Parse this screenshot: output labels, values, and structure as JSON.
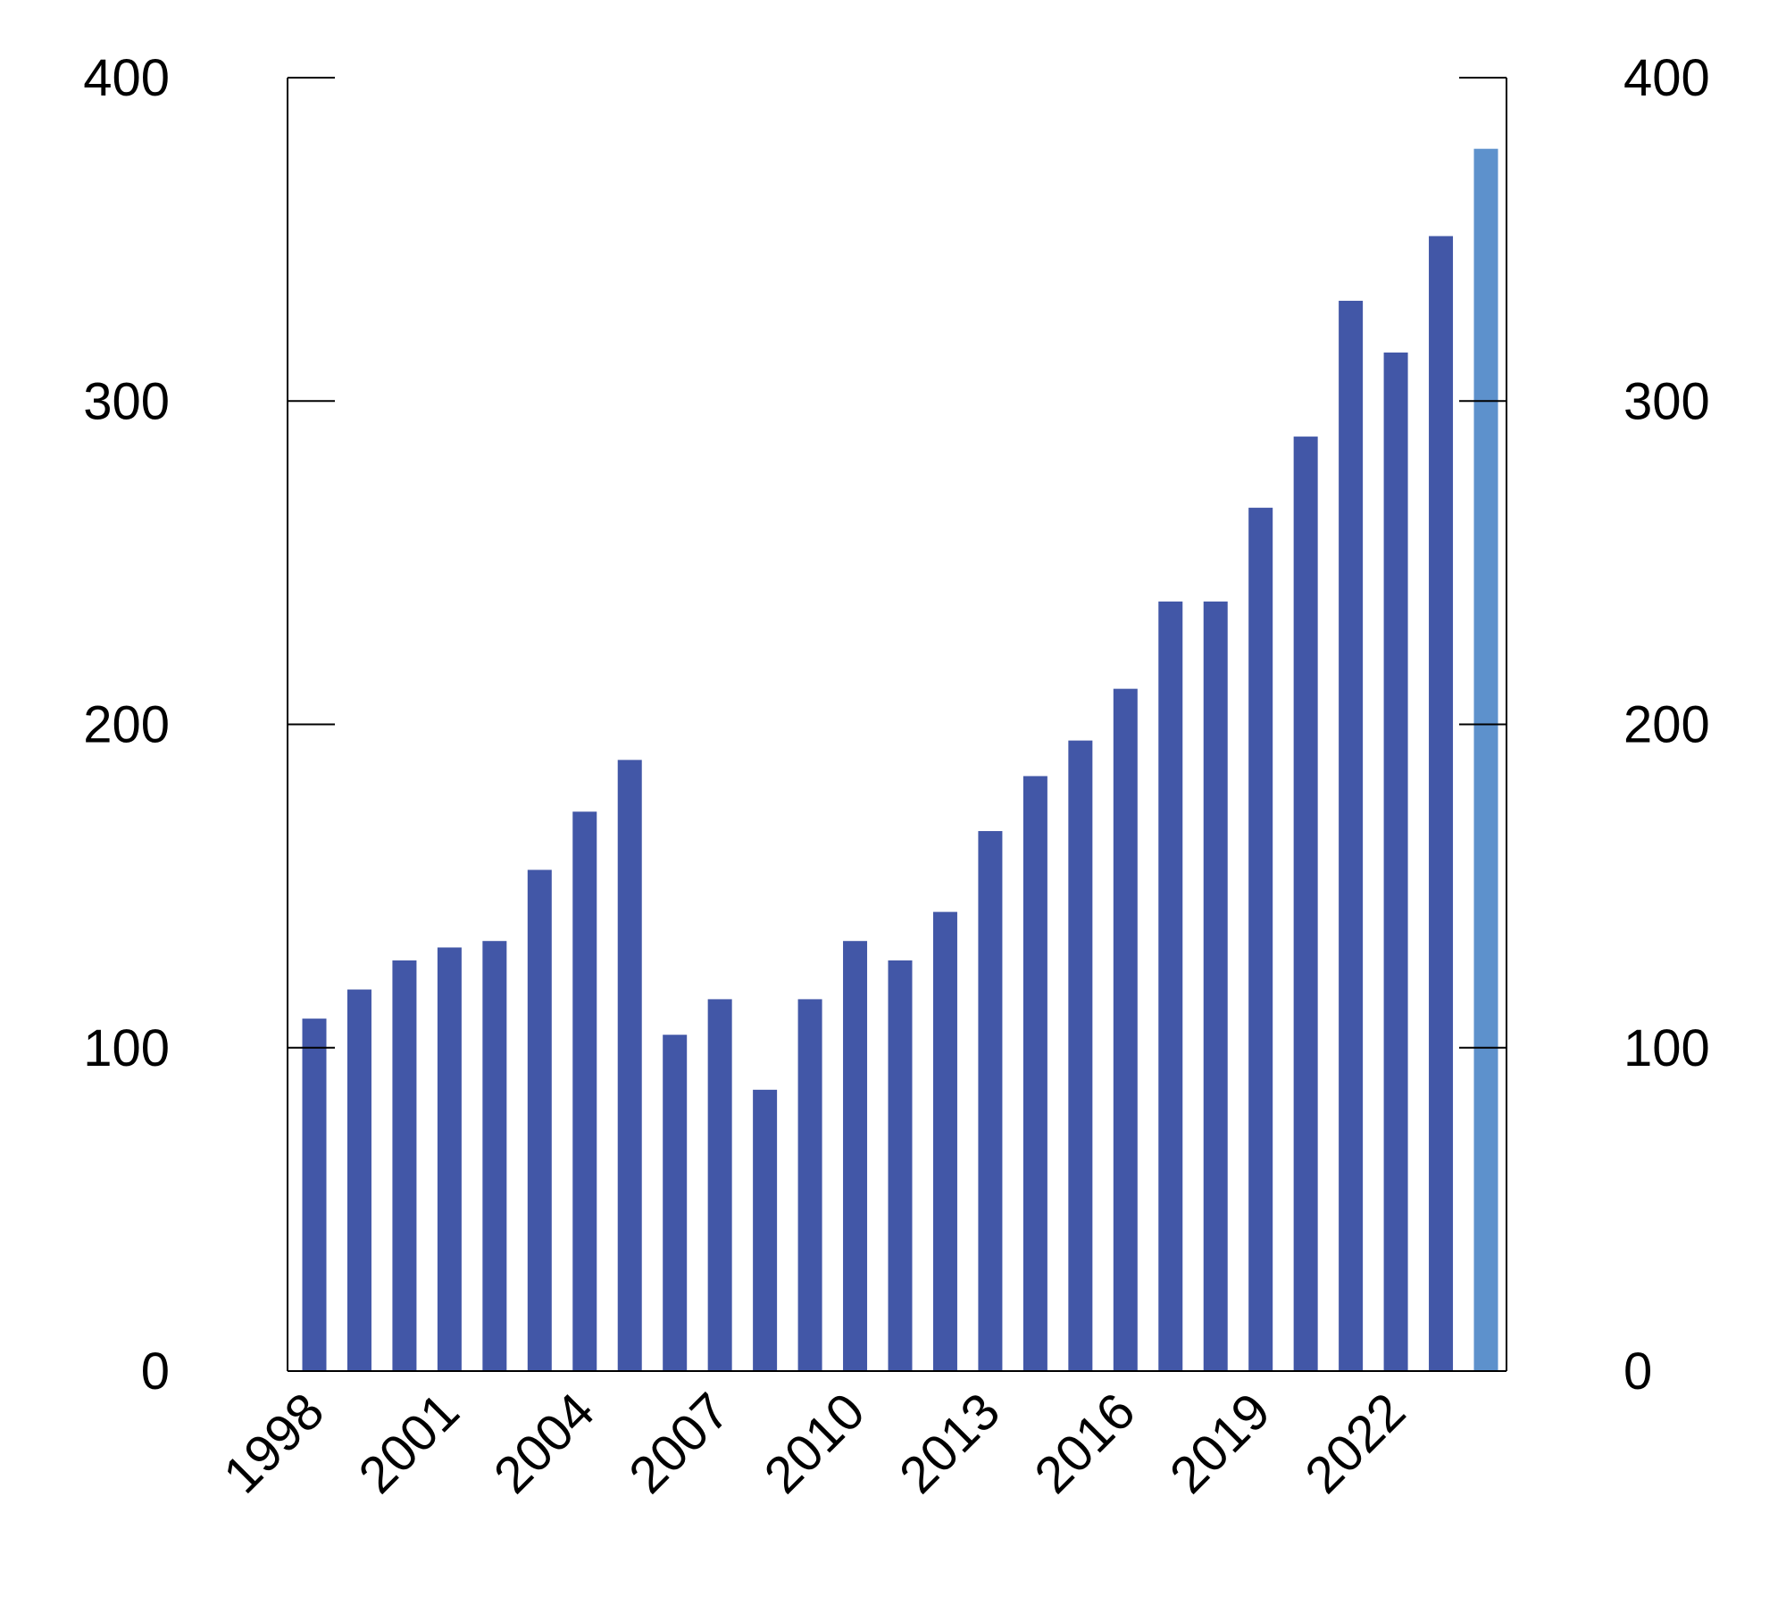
{
  "chart_data": {
    "type": "bar",
    "title": "",
    "xlabel": "",
    "ylabel": "",
    "ylim": [
      0,
      400
    ],
    "yticks": [
      0,
      100,
      200,
      300,
      400
    ],
    "secondary_yticks": [
      0,
      100,
      200,
      300,
      400
    ],
    "xtick_labels": [
      "1998",
      "2001",
      "2004",
      "2007",
      "2010",
      "2013",
      "2016",
      "2019",
      "2022"
    ],
    "grid": false,
    "categories": [
      "1998",
      "1999",
      "2000",
      "2001",
      "2002",
      "2003",
      "2004",
      "2005",
      "2006",
      "2007",
      "2008",
      "2009",
      "2010",
      "2011",
      "2012",
      "2013",
      "2014",
      "2015",
      "2016",
      "2017",
      "2018",
      "2019",
      "2020",
      "2021",
      "2022",
      "2023",
      "2024"
    ],
    "values": [
      109,
      118,
      127,
      131,
      133,
      155,
      173,
      189,
      104,
      115,
      87,
      115,
      133,
      127,
      142,
      167,
      184,
      195,
      211,
      238,
      238,
      267,
      289,
      331,
      315,
      351,
      378
    ],
    "colors": {
      "bar": "#4257a7",
      "highlight": "#5d91cc",
      "axis": "#000000"
    },
    "highlighted_categories": [
      "2024"
    ]
  }
}
